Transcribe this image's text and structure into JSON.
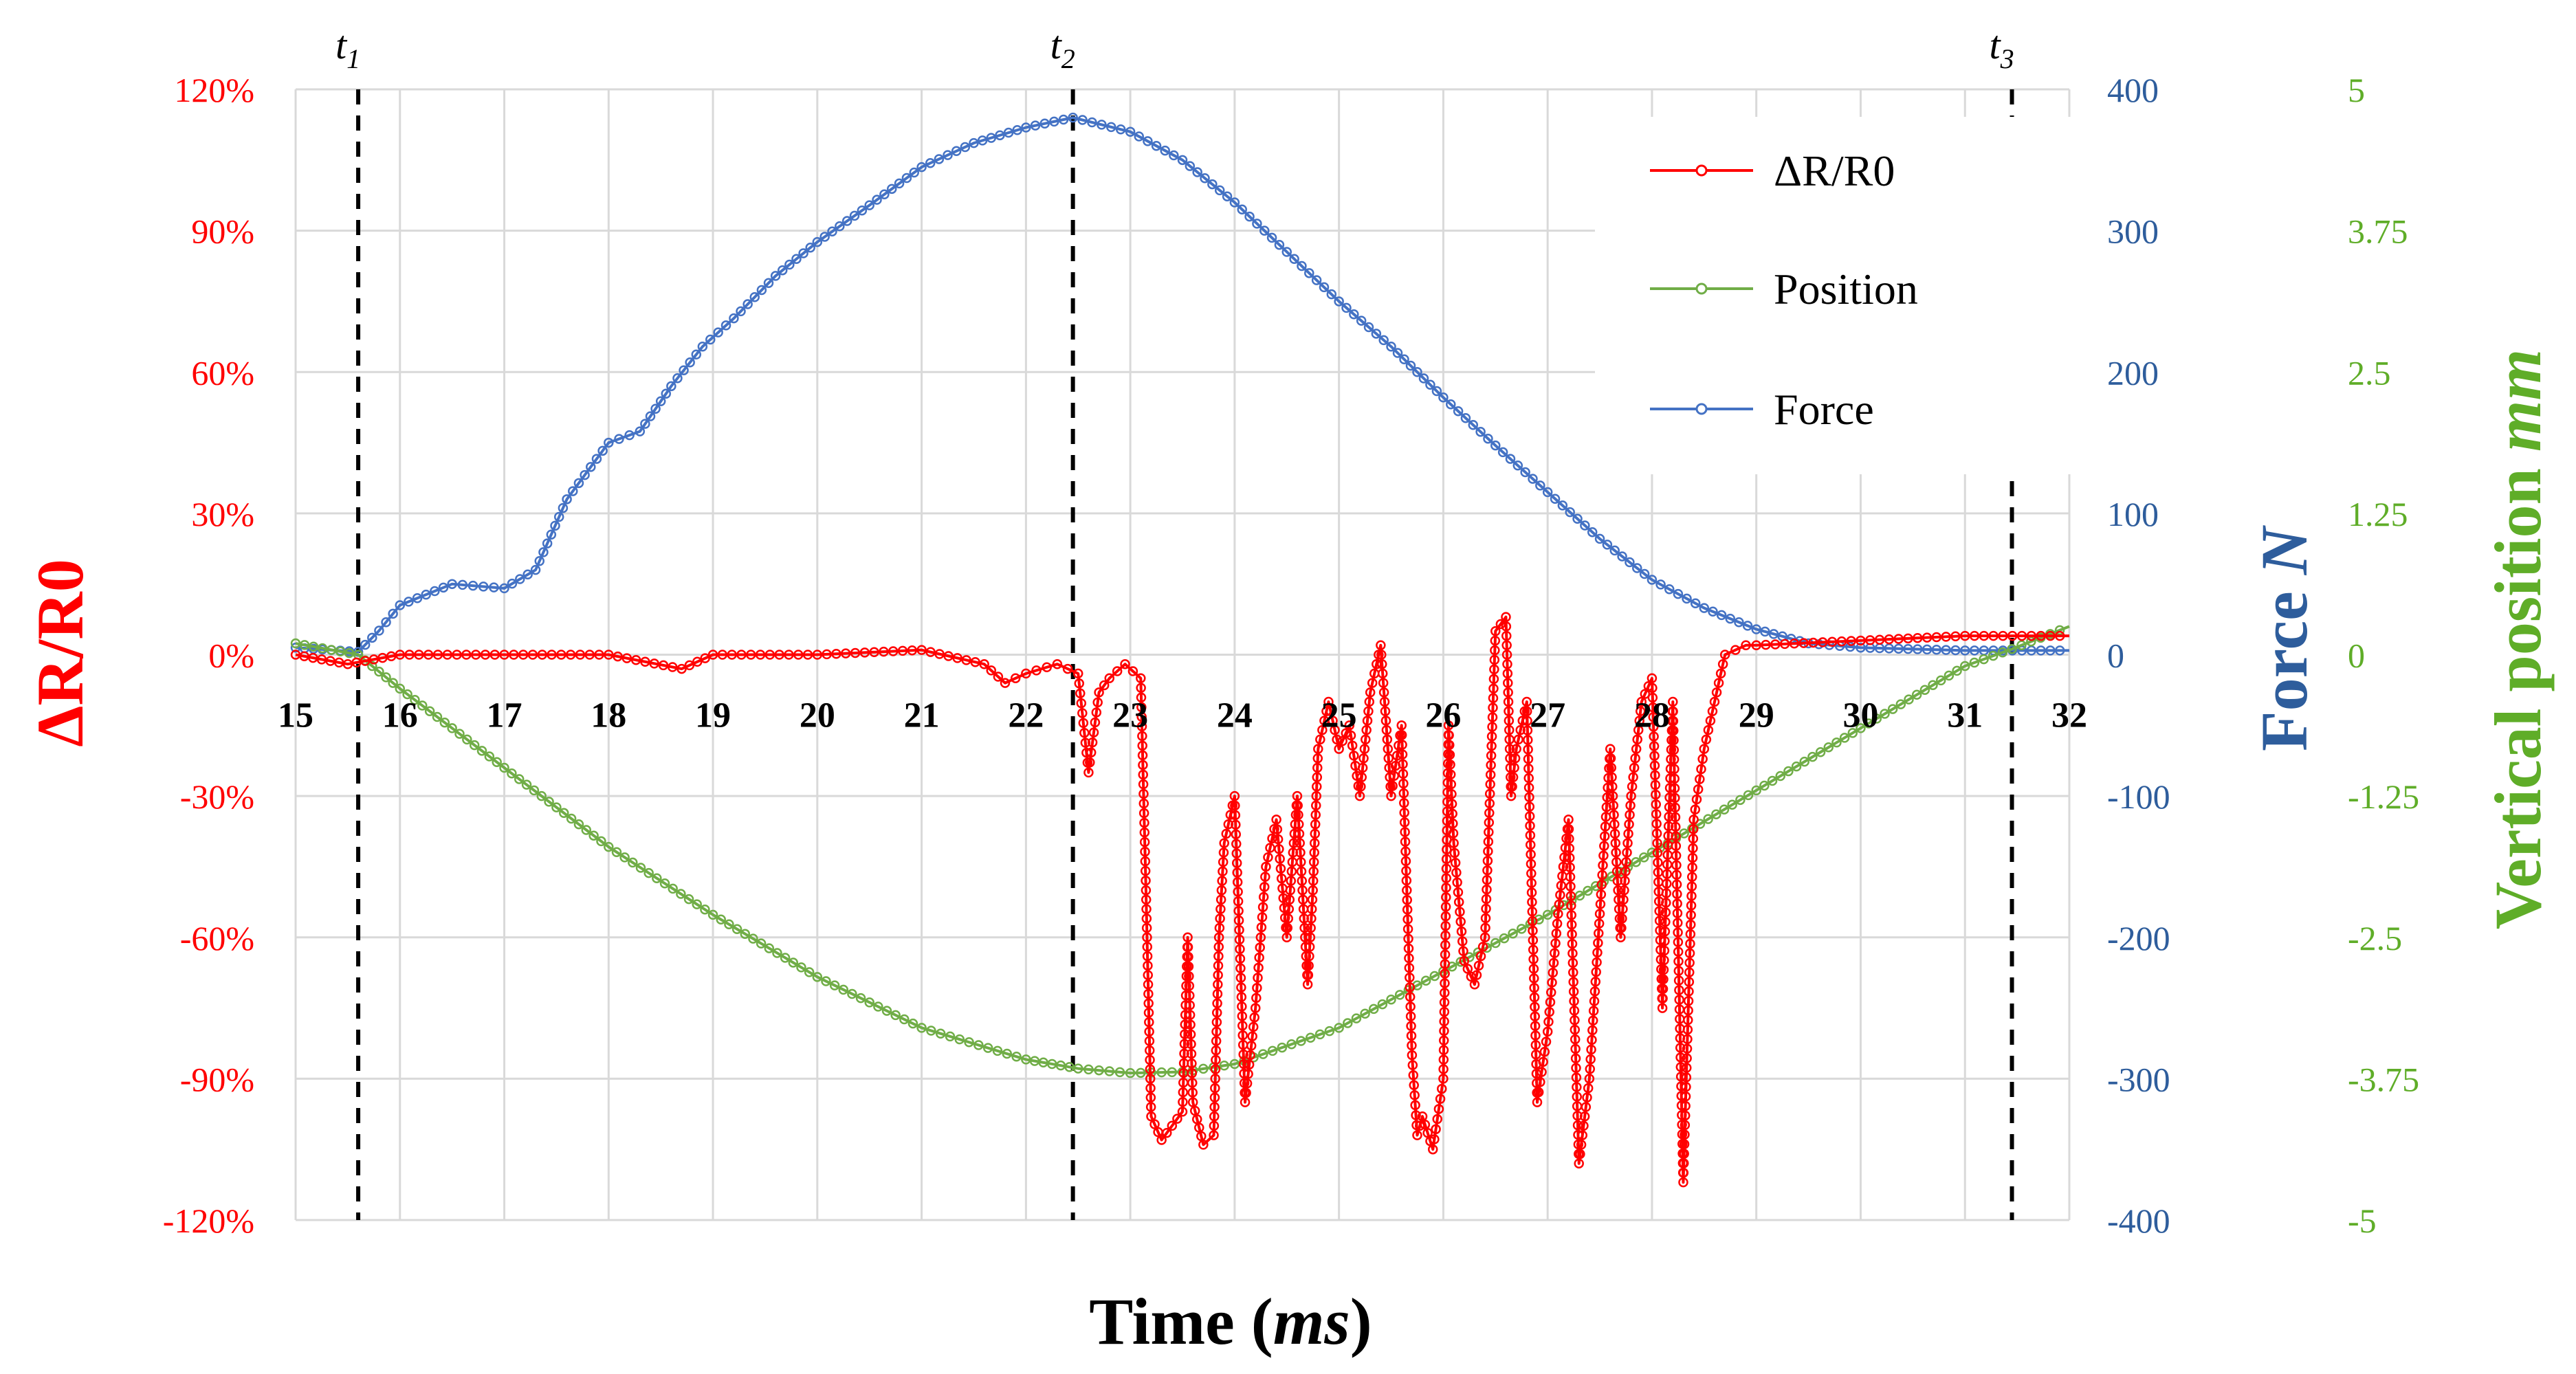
{
  "chart_data": {
    "type": "line",
    "xlabel": "Time",
    "xlabel_unit": "ms",
    "xlim": [
      15,
      32
    ],
    "x_ticks": [
      "15",
      "16",
      "17",
      "18",
      "19",
      "20",
      "21",
      "22",
      "23",
      "24",
      "25",
      "26",
      "27",
      "28",
      "29",
      "30",
      "31",
      "32"
    ],
    "grid": true,
    "legend_position": "top-right",
    "colors": {
      "dr": "#ff0000",
      "position": "#70ad47",
      "force": "#4472c4",
      "dr_axis": "#ff0000",
      "force_axis": "#2e5d9c",
      "position_axis": "#5fad28",
      "grid": "#d9d9d9",
      "marker_line": "#000000"
    },
    "axes": {
      "left": {
        "label": "ΔR/R0",
        "ylim": [
          -1.2,
          1.2
        ],
        "ticks": [
          "120%",
          "90%",
          "60%",
          "30%",
          "0%",
          "-30%",
          "-60%",
          "-90%",
          "-120%"
        ]
      },
      "right1": {
        "label_main": "Force ",
        "label_unit": "N",
        "ylim": [
          -400,
          400
        ],
        "ticks": [
          "400",
          "300",
          "200",
          "100",
          "0",
          "-100",
          "-200",
          "-300",
          "-400"
        ]
      },
      "right2": {
        "label_main": "Vertical position ",
        "label_unit": "mm",
        "ylim": [
          -5,
          5
        ],
        "ticks": [
          "5",
          "3.75",
          "2.5",
          "1.25",
          "0",
          "-1.25",
          "-2.5",
          "-3.75",
          "-5"
        ]
      }
    },
    "markers": [
      {
        "base": "t",
        "sub": "1",
        "x": 15.6
      },
      {
        "base": "t",
        "sub": "2",
        "x": 22.45
      },
      {
        "base": "t",
        "sub": "3",
        "x": 31.45
      }
    ],
    "series": [
      {
        "name": "ΔR/R0",
        "axis": "left",
        "x": [
          15,
          15.5,
          16,
          17,
          18,
          18.7,
          19,
          20,
          21,
          21.6,
          21.8,
          22.0,
          22.3,
          22.5,
          22.6,
          22.7,
          22.8,
          22.95,
          23.1,
          23.15,
          23.2,
          23.3,
          23.4,
          23.5,
          23.55,
          23.6,
          23.7,
          23.8,
          23.85,
          23.9,
          24.0,
          24.1,
          24.2,
          24.25,
          24.3,
          24.4,
          24.5,
          24.6,
          24.7,
          24.75,
          24.8,
          24.9,
          25.0,
          25.1,
          25.2,
          25.3,
          25.4,
          25.5,
          25.6,
          25.7,
          25.75,
          25.8,
          25.9,
          26.0,
          26.05,
          26.1,
          26.2,
          26.3,
          26.4,
          26.5,
          26.6,
          26.65,
          26.7,
          26.8,
          26.9,
          27.0,
          27.1,
          27.2,
          27.3,
          27.4,
          27.5,
          27.6,
          27.7,
          27.8,
          27.9,
          28.0,
          28.1,
          28.2,
          28.3,
          28.4,
          28.5,
          28.6,
          28.7,
          28.8,
          28.9,
          29,
          30,
          31,
          32
        ],
        "y": [
          0.0,
          -0.02,
          0.0,
          0.0,
          0.0,
          -0.03,
          0.0,
          0.0,
          0.01,
          -0.02,
          -0.06,
          -0.04,
          -0.02,
          -0.04,
          -0.25,
          -0.08,
          -0.05,
          -0.02,
          -0.05,
          -0.5,
          -0.98,
          -1.03,
          -1.0,
          -0.97,
          -0.6,
          -0.95,
          -1.04,
          -1.02,
          -0.6,
          -0.4,
          -0.3,
          -0.95,
          -0.75,
          -0.6,
          -0.45,
          -0.35,
          -0.6,
          -0.3,
          -0.7,
          -0.5,
          -0.2,
          -0.1,
          -0.2,
          -0.15,
          -0.3,
          -0.08,
          0.02,
          -0.3,
          -0.15,
          -0.85,
          -1.02,
          -0.98,
          -1.05,
          -0.9,
          -0.15,
          -0.4,
          -0.65,
          -0.7,
          -0.6,
          0.05,
          0.08,
          -0.3,
          -0.2,
          -0.1,
          -0.95,
          -0.8,
          -0.55,
          -0.35,
          -1.08,
          -0.9,
          -0.55,
          -0.2,
          -0.6,
          -0.3,
          -0.1,
          -0.05,
          -0.75,
          -0.1,
          -1.12,
          -0.35,
          -0.2,
          -0.1,
          0.0,
          0.01,
          0.02,
          0.02,
          0.03,
          0.04,
          0.04
        ]
      },
      {
        "name": "Position",
        "axis": "right2",
        "x": [
          15,
          15.6,
          16,
          17,
          18,
          19,
          20,
          21,
          22,
          22.5,
          23,
          23.5,
          24,
          25,
          26,
          27,
          28,
          29,
          30,
          31,
          31.45,
          32
        ],
        "y": [
          0.1,
          0.0,
          -0.3,
          -1.0,
          -1.7,
          -2.3,
          -2.85,
          -3.3,
          -3.58,
          -3.66,
          -3.7,
          -3.69,
          -3.62,
          -3.3,
          -2.8,
          -2.3,
          -1.75,
          -1.2,
          -0.65,
          -0.1,
          0.05,
          0.25
        ]
      },
      {
        "name": "Force",
        "axis": "right1",
        "x": [
          15,
          15.6,
          15.8,
          16,
          16.5,
          17,
          17.3,
          17.6,
          18,
          18.3,
          18.6,
          18.9,
          19.2,
          19.6,
          20,
          20.5,
          21,
          21.5,
          22,
          22.45,
          23,
          23.5,
          24,
          24.5,
          25,
          25.5,
          26,
          26.5,
          27,
          27.5,
          28,
          28.5,
          29,
          29.5,
          30,
          31,
          32
        ],
        "y": [
          5,
          2,
          17,
          35,
          50,
          47,
          60,
          110,
          150,
          158,
          190,
          218,
          238,
          268,
          292,
          318,
          345,
          362,
          373,
          380,
          370,
          350,
          320,
          285,
          250,
          218,
          182,
          148,
          115,
          82,
          53,
          33,
          18,
          8,
          5,
          3,
          3
        ]
      }
    ]
  }
}
